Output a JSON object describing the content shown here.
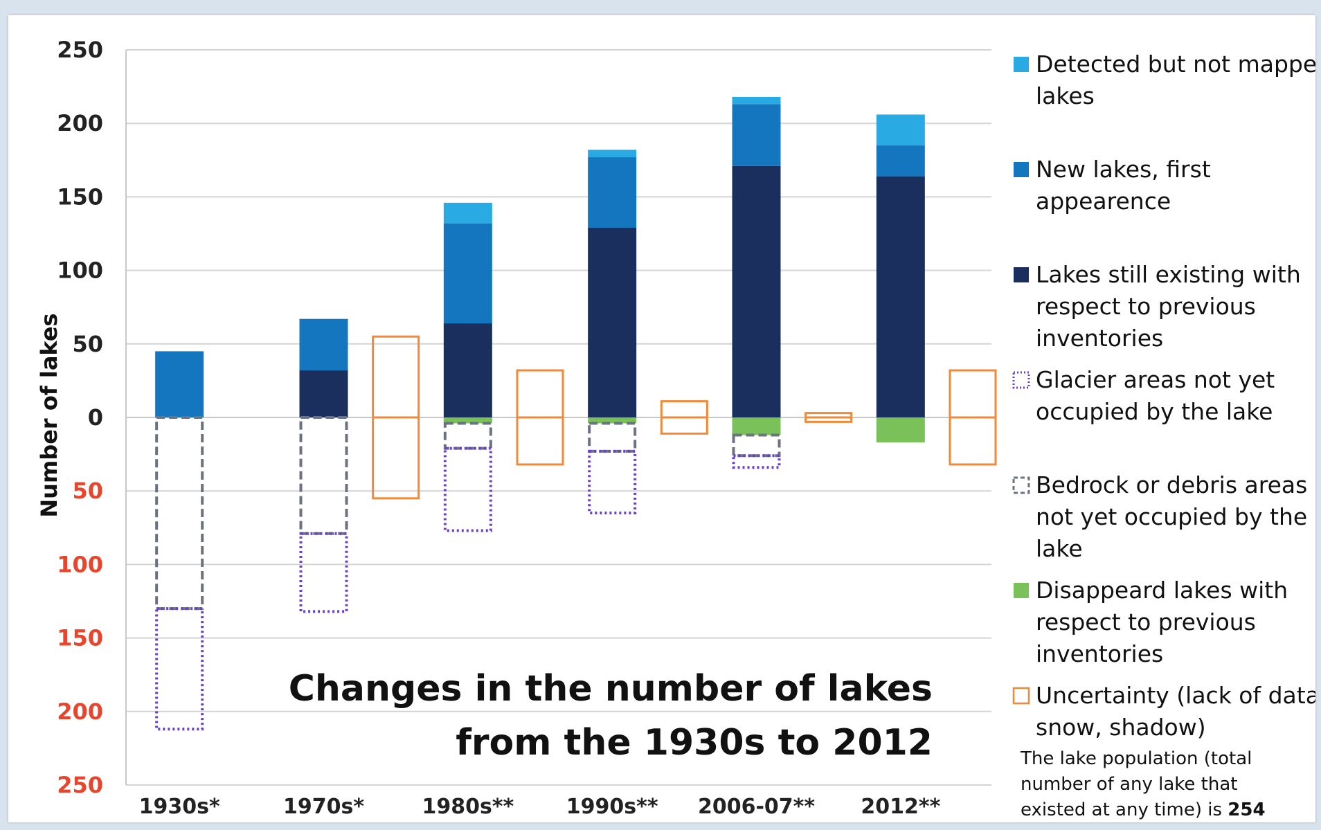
{
  "chart_data": {
    "type": "bar",
    "title": [
      "Changes in the number of lakes",
      "from the 1930s to 2012"
    ],
    "ylabel": "Number of lakes",
    "ylim": [
      -250,
      250
    ],
    "ytick_values": [
      250,
      200,
      150,
      100,
      50,
      0,
      -50,
      -100,
      -150,
      -200,
      -250
    ],
    "ytick_labels": [
      "250",
      "200",
      "150",
      "100",
      "50",
      "0",
      "50",
      "100",
      "150",
      "200",
      "250"
    ],
    "ytick_color_positive": "#222222",
    "ytick_color_negative": "#e8452c",
    "categories": [
      "1930s*",
      "1970s*",
      "1980s**",
      "1990s**",
      "2006-07**",
      "2012**"
    ],
    "series": [
      {
        "name": "Lakes still existing with respect to previous inventories",
        "color": "#1b2f5e",
        "style": "solid",
        "values": [
          0,
          32,
          64,
          129,
          171,
          164
        ]
      },
      {
        "name": "New lakes, first appearence",
        "color": "#1576c0",
        "style": "solid",
        "values": [
          45,
          35,
          68,
          48,
          42,
          21
        ]
      },
      {
        "name": "Detected but not mapped lakes",
        "color": "#2aaae2",
        "style": "solid",
        "values": [
          0,
          0,
          14,
          5,
          5,
          21
        ]
      },
      {
        "name": "Disappeard lakes with respect to previous inventories",
        "color": "#7ac15a",
        "style": "solid",
        "values": [
          0,
          0,
          -4,
          -4,
          -12,
          -17
        ]
      },
      {
        "name": "Bedrock or debris areas not yet occupied by the lake",
        "color": "#6b7280",
        "style": "dashed",
        "values": [
          -130,
          -79,
          -17,
          -19,
          -14,
          0
        ]
      },
      {
        "name": "Glacier areas not yet occupied by the lake",
        "color": "#6a3fd0",
        "style": "dotted",
        "values": [
          -82,
          -53,
          -56,
          -42,
          -8,
          0
        ]
      }
    ],
    "uncertainty": {
      "name": "Uncertainty (lack of data, snow, shadow)",
      "color": "#f08a3a",
      "intervals": [
        {
          "between": [
            "1970s*",
            "1980s**"
          ],
          "low": -55,
          "high": 55
        },
        {
          "between": [
            "1980s**",
            "1990s**"
          ],
          "low": -32,
          "high": 32
        },
        {
          "between": [
            "1990s**",
            "2006-07**"
          ],
          "low": -11,
          "high": 11
        },
        {
          "between": [
            "2006-07**",
            "2012**"
          ],
          "low": -3,
          "high": 3
        },
        {
          "after": "2012**",
          "low": -32,
          "high": 32
        }
      ]
    },
    "legend_placement": "right",
    "grid": true
  },
  "legend": [
    {
      "lines": [
        "Detected but not mapped",
        "lakes"
      ],
      "color": "#2aaae2",
      "style": "solid"
    },
    {
      "lines": [
        "New lakes, first",
        "appearence"
      ],
      "color": "#1576c0",
      "style": "solid"
    },
    {
      "lines": [
        "Lakes still existing with",
        "respect to previous",
        "inventories"
      ],
      "color": "#1b2f5e",
      "style": "solid"
    },
    {
      "lines": [
        "Glacier areas not yet",
        "occupied by the lake"
      ],
      "color": "#6a3fd0",
      "style": "dotted"
    },
    {
      "lines": [
        "Bedrock or debris areas",
        "not yet occupied by the",
        "lake"
      ],
      "color": "#6b7280",
      "style": "dashed"
    },
    {
      "lines": [
        "Disappeard lakes with",
        "respect to previous",
        "inventories"
      ],
      "color": "#7ac15a",
      "style": "solid"
    },
    {
      "lines": [
        "Uncertainty (lack of data,",
        "snow, shadow)"
      ],
      "color": "#f08a3a",
      "style": "outline"
    }
  ],
  "note": {
    "line1": "The lake population (total",
    "line2": "number of any lake that",
    "line3_prefix": "existed at any time) is ",
    "line3_value": "254"
  }
}
